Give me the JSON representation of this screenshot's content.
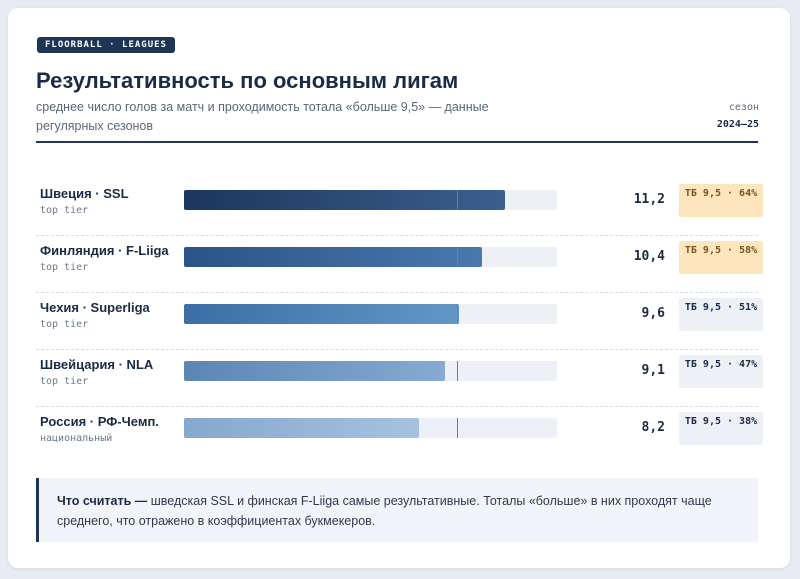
{
  "header": {
    "tag": "FLOORBALL · LEAGUES",
    "title": "Результативность по основным лигам",
    "subtitle": "среднее число голов за матч и проходимость тотала «больше 9,5» — данные регулярных сезонов",
    "season_label": "сезон",
    "season_value": "2024–25"
  },
  "chart_data": {
    "type": "bar",
    "orientation": "horizontal",
    "title": "Результативность по основным лигам",
    "xlim": [
      0,
      13
    ],
    "threshold": 9.5,
    "categories": [
      "Швеция · SSL",
      "Финляндия · F-Liiga",
      "Чехия · Superliga",
      "Швейцария · NLA",
      "Россия · РФ-Чемп."
    ],
    "tiers": [
      "top tier",
      "top tier",
      "top tier",
      "top tier",
      "национальный"
    ],
    "values": [
      11.2,
      10.4,
      9.6,
      9.1,
      8.2
    ],
    "value_labels": [
      "11,2",
      "10,4",
      "9,6",
      "9,1",
      "8,2"
    ],
    "over_pct": [
      64,
      58,
      51,
      47,
      38
    ],
    "badge_labels": [
      "ТБ 9,5 · 64%",
      "ТБ 9,5 · 58%",
      "ТБ 9,5 · 51%",
      "ТБ 9,5 · 47%",
      "ТБ 9,5 · 38%"
    ],
    "highlight": [
      true,
      true,
      false,
      false,
      false
    ],
    "colors": [
      [
        "#1c365c",
        "#3b5f8e"
      ],
      [
        "#2a5487",
        "#4a78ad"
      ],
      [
        "#3c6ea5",
        "#6496c8"
      ],
      [
        "#5b86b4",
        "#86aad2"
      ],
      [
        "#85a8ce",
        "#a6c2e0"
      ]
    ],
    "threshold_color": "#d9534f"
  },
  "note": {
    "lead": "Что считать —",
    "text": " шведская SSL и финская F-Liiga самые результативные. Тоталы «больше» в них проходят чаще среднего, что отражено в коэффициентах букмекеров."
  }
}
